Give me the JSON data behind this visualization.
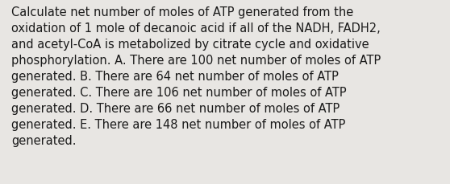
{
  "background_color": "#e8e6e3",
  "text_color": "#1a1a1a",
  "font_size": 10.5,
  "lines": [
    "Calculate net number of moles of ATP generated from the",
    "oxidation of 1 mole of decanoic acid if all of the NADH, FADH2,",
    "and acetyl-CoA is metabolized by citrate cycle and oxidative",
    "phosphorylation. A. There are 100 net number of moles of ATP",
    "generated. B. There are 64 net number of moles of ATP",
    "generated. C. There are 106 net number of moles of ATP",
    "generated. D. There are 66 net number of moles of ATP",
    "generated. E. There are 148 net number of moles of ATP",
    "generated."
  ],
  "figwidth": 5.58,
  "figheight": 2.3,
  "dpi": 100
}
